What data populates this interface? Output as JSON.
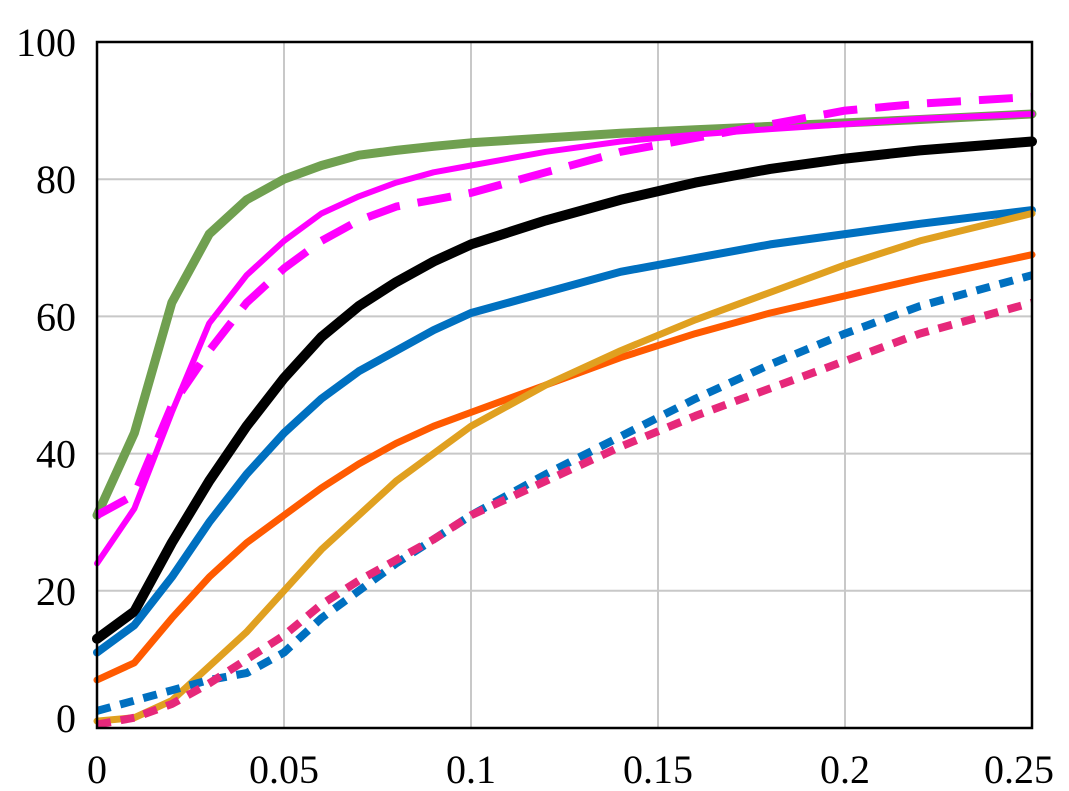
{
  "chart_data": {
    "type": "line",
    "title": "",
    "xlabel": "",
    "ylabel": "",
    "xlim": [
      0,
      0.25
    ],
    "ylim": [
      0,
      100
    ],
    "grid": true,
    "legend": "none",
    "x_ticks": [
      "0",
      "0.05",
      "0.1",
      "0.15",
      "0.2",
      "0.25"
    ],
    "y_ticks": [
      "0",
      "20",
      "40",
      "60",
      "80",
      "100"
    ],
    "x": [
      0,
      0.01,
      0.02,
      0.03,
      0.04,
      0.05,
      0.06,
      0.07,
      0.08,
      0.09,
      0.1,
      0.12,
      0.14,
      0.16,
      0.18,
      0.2,
      0.22,
      0.25
    ],
    "series": [
      {
        "color": "#70a050",
        "dash": "solid",
        "width": 9,
        "values": [
          31,
          43,
          62,
          72,
          77,
          80,
          82,
          83.5,
          84.2,
          84.8,
          85.3,
          86,
          86.7,
          87.2,
          87.7,
          88.2,
          88.7,
          89.5
        ]
      },
      {
        "color": "#ff00ff",
        "dash": "solid",
        "width": 6,
        "values": [
          24,
          32,
          46,
          59,
          66,
          71,
          75,
          77.5,
          79.5,
          81,
          82,
          84,
          85.5,
          86.5,
          87.3,
          88,
          88.8,
          89.5
        ]
      },
      {
        "color": "#ff00ff",
        "dash": "dashed",
        "width": 8,
        "values": [
          31,
          34,
          47,
          55,
          62,
          67,
          71,
          74,
          76,
          77,
          78,
          81,
          84,
          86,
          88,
          90,
          91,
          92
        ]
      },
      {
        "color": "#000000",
        "dash": "solid",
        "width": 10,
        "values": [
          13,
          17,
          27,
          36,
          44,
          51,
          57,
          61.5,
          65,
          68,
          70.5,
          74,
          77,
          79.5,
          81.5,
          83,
          84.2,
          85.5
        ]
      },
      {
        "color": "#0070c0",
        "dash": "solid",
        "width": 8,
        "values": [
          11,
          15,
          22,
          30,
          37,
          43,
          48,
          52,
          55,
          58,
          60.5,
          63.5,
          66.5,
          68.5,
          70.5,
          72,
          73.5,
          75.5
        ]
      },
      {
        "color": "#ff5a00",
        "dash": "solid",
        "width": 7,
        "values": [
          7,
          9.5,
          16,
          22,
          27,
          31,
          35,
          38.5,
          41.5,
          44,
          46,
          50,
          54,
          57.5,
          60.5,
          63,
          65.5,
          69
        ]
      },
      {
        "color": "#e0a020",
        "dash": "solid",
        "width": 7,
        "values": [
          1,
          1.5,
          4,
          9,
          14,
          20,
          26,
          31,
          36,
          40,
          44,
          50,
          55,
          59.5,
          63.5,
          67.5,
          71,
          75
        ]
      },
      {
        "color": "#0070c0",
        "dash": "dotted",
        "width": 8,
        "values": [
          2.5,
          4,
          5.5,
          7,
          8,
          11,
          16,
          20,
          24,
          27.5,
          31,
          37,
          42.5,
          48,
          53,
          57.5,
          61.5,
          66
        ]
      },
      {
        "color": "#e6287a",
        "dash": "dotted",
        "width": 8,
        "values": [
          0.5,
          1.5,
          3.5,
          6.5,
          10,
          13.5,
          18,
          21.5,
          24.5,
          27.5,
          31,
          36,
          41,
          45.5,
          49.5,
          53.5,
          57.5,
          62
        ]
      }
    ]
  }
}
